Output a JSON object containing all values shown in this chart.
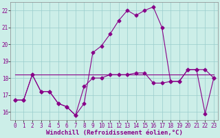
{
  "xlabel": "Windchill (Refroidissement éolien,°C)",
  "bg_color": "#cceee8",
  "line_color": "#880088",
  "xlim": [
    -0.5,
    23.5
  ],
  "ylim": [
    15.5,
    22.5
  ],
  "yticks": [
    16,
    17,
    18,
    19,
    20,
    21,
    22
  ],
  "xticks": [
    0,
    1,
    2,
    3,
    4,
    5,
    6,
    7,
    8,
    9,
    10,
    11,
    12,
    13,
    14,
    15,
    16,
    17,
    18,
    19,
    20,
    21,
    22,
    23
  ],
  "hours": [
    0,
    1,
    2,
    3,
    4,
    5,
    6,
    7,
    8,
    9,
    10,
    11,
    12,
    13,
    14,
    15,
    16,
    17,
    18,
    19,
    20,
    21,
    22,
    23
  ],
  "line1": [
    16.7,
    16.7,
    18.2,
    17.2,
    17.2,
    16.5,
    16.3,
    15.8,
    16.5,
    19.5,
    19.9,
    20.6,
    21.4,
    22.0,
    21.7,
    22.0,
    22.2,
    21.0,
    17.8,
    17.8,
    18.5,
    18.5,
    15.9,
    18.0
  ],
  "line2": [
    16.7,
    16.7,
    18.2,
    17.2,
    17.2,
    16.5,
    16.3,
    15.8,
    17.5,
    18.0,
    18.0,
    18.2,
    18.2,
    18.2,
    18.3,
    18.3,
    17.7,
    17.7,
    17.8,
    17.8,
    18.5,
    18.5,
    18.5,
    18.0
  ],
  "line3": [
    18.2,
    18.2,
    18.2,
    18.2,
    18.2,
    18.2,
    18.2,
    18.2,
    18.2,
    18.2,
    18.2,
    18.2,
    18.2,
    18.2,
    18.2,
    18.2,
    18.2,
    18.2,
    18.2,
    18.2,
    18.2,
    18.2,
    18.2,
    18.2
  ],
  "markersize": 2.5,
  "linewidth": 0.8,
  "grid_color": "#99cccc",
  "tick_fontsize": 5.5,
  "xlabel_fontsize": 6.5
}
